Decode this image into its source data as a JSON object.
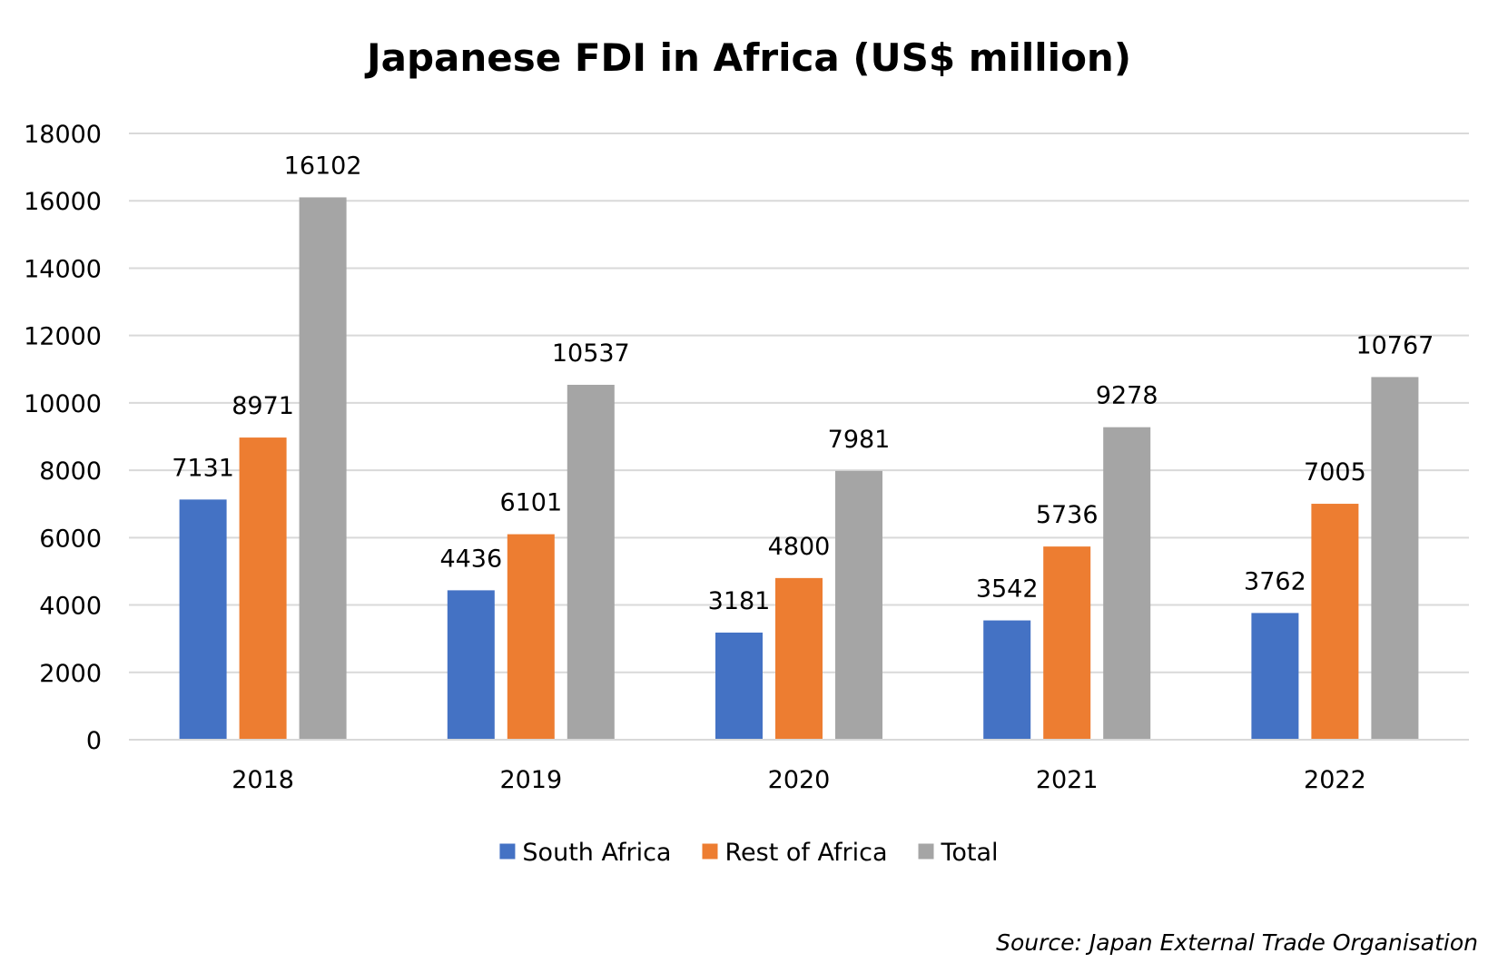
{
  "chart_data": {
    "type": "bar",
    "title": "Japanese FDI in Africa (US$ million)",
    "xlabel": "",
    "ylabel": "",
    "categories": [
      "2018",
      "2019",
      "2020",
      "2021",
      "2022"
    ],
    "ylim": [
      0,
      18000
    ],
    "yticks": [
      0,
      2000,
      4000,
      6000,
      8000,
      10000,
      12000,
      14000,
      16000,
      18000
    ],
    "grid": true,
    "legend_position": "bottom",
    "series": [
      {
        "name": "South Africa",
        "color": "#4472c4",
        "values": [
          7131,
          4436,
          3181,
          3542,
          3762
        ]
      },
      {
        "name": "Rest of Africa",
        "color": "#ed7d31",
        "values": [
          8971,
          6101,
          4800,
          5736,
          7005
        ]
      },
      {
        "name": "Total",
        "color": "#a5a5a5",
        "values": [
          16102,
          10537,
          7981,
          9278,
          10767
        ]
      }
    ],
    "source": "Source: Japan External Trade Organisation"
  }
}
